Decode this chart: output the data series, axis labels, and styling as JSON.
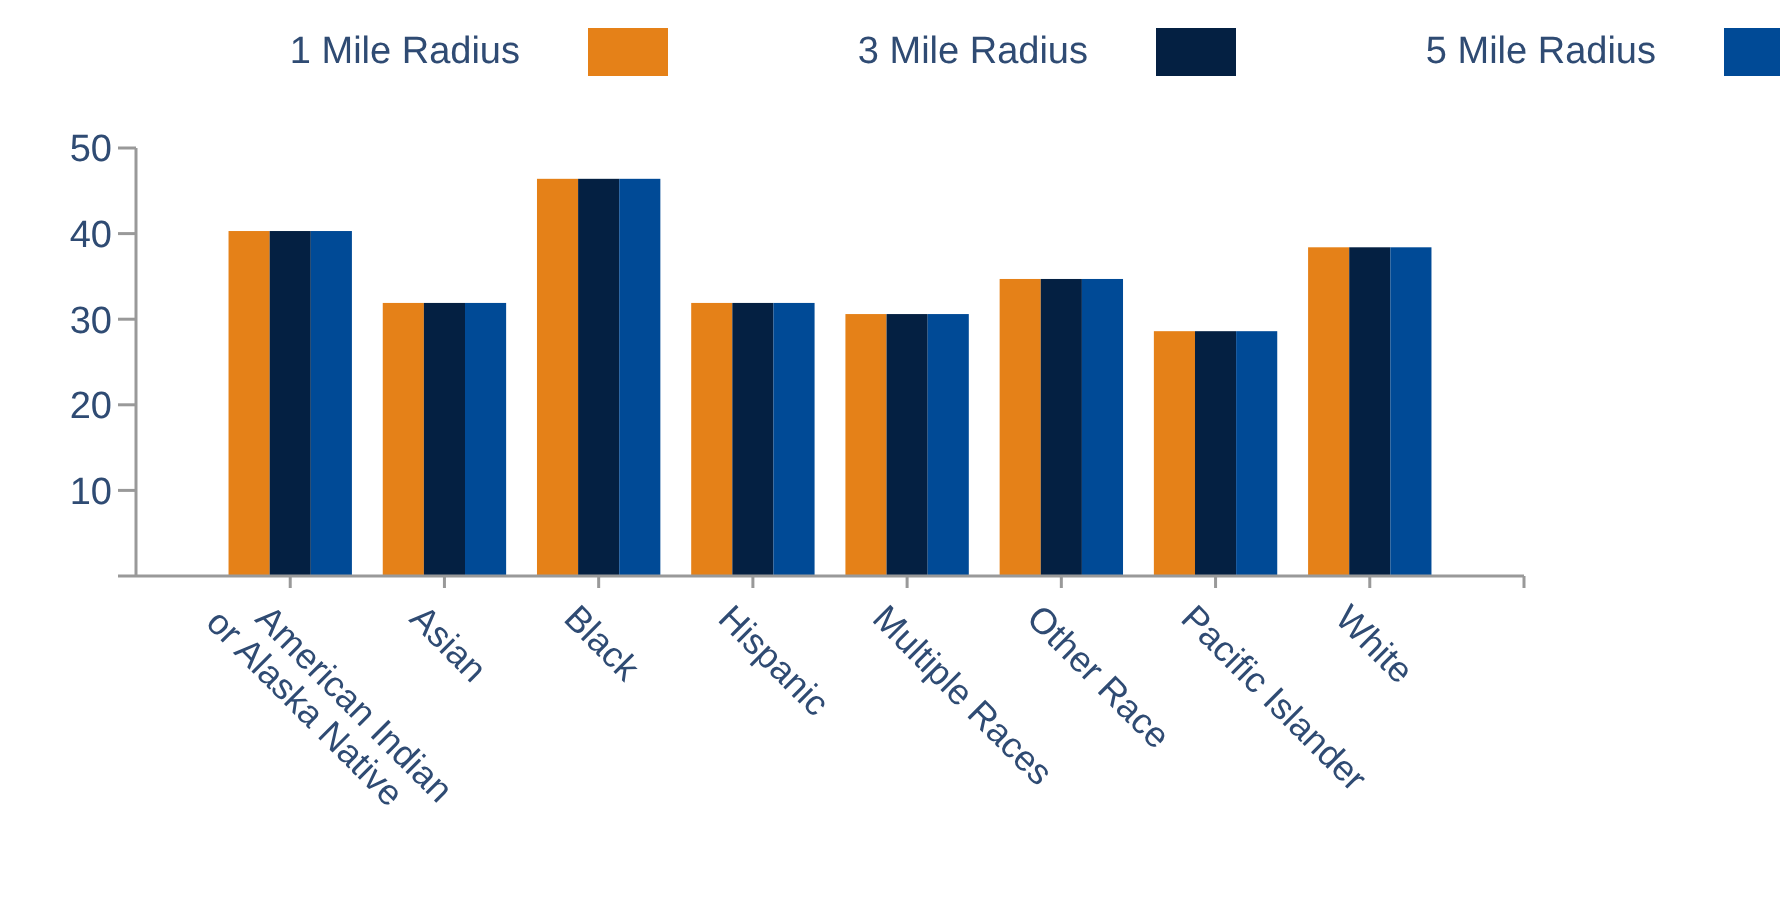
{
  "chart_data": {
    "type": "bar",
    "categories": [
      "American Indian or Alaska Native",
      "Asian",
      "Black",
      "Hispanic",
      "Multiple Races",
      "Other Race",
      "Pacific Islander",
      "White"
    ],
    "series": [
      {
        "name": "1 Mile Radius",
        "color": "#e58118",
        "values": [
          40.3,
          31.9,
          46.4,
          31.9,
          30.6,
          34.7,
          28.6,
          38.4
        ]
      },
      {
        "name": "3 Mile Radius",
        "color": "#042042",
        "values": [
          40.3,
          31.9,
          46.4,
          31.9,
          30.6,
          34.7,
          28.6,
          38.4
        ]
      },
      {
        "name": "5 Mile Radius",
        "color": "#004a96",
        "values": [
          40.3,
          31.9,
          46.4,
          31.9,
          30.6,
          34.7,
          28.6,
          38.4
        ]
      }
    ],
    "ylim": [
      0,
      50
    ],
    "yticks": [
      {
        "value": 0,
        "label": null
      },
      10,
      20,
      30,
      40,
      50
    ],
    "grid": false,
    "legend": "top"
  }
}
